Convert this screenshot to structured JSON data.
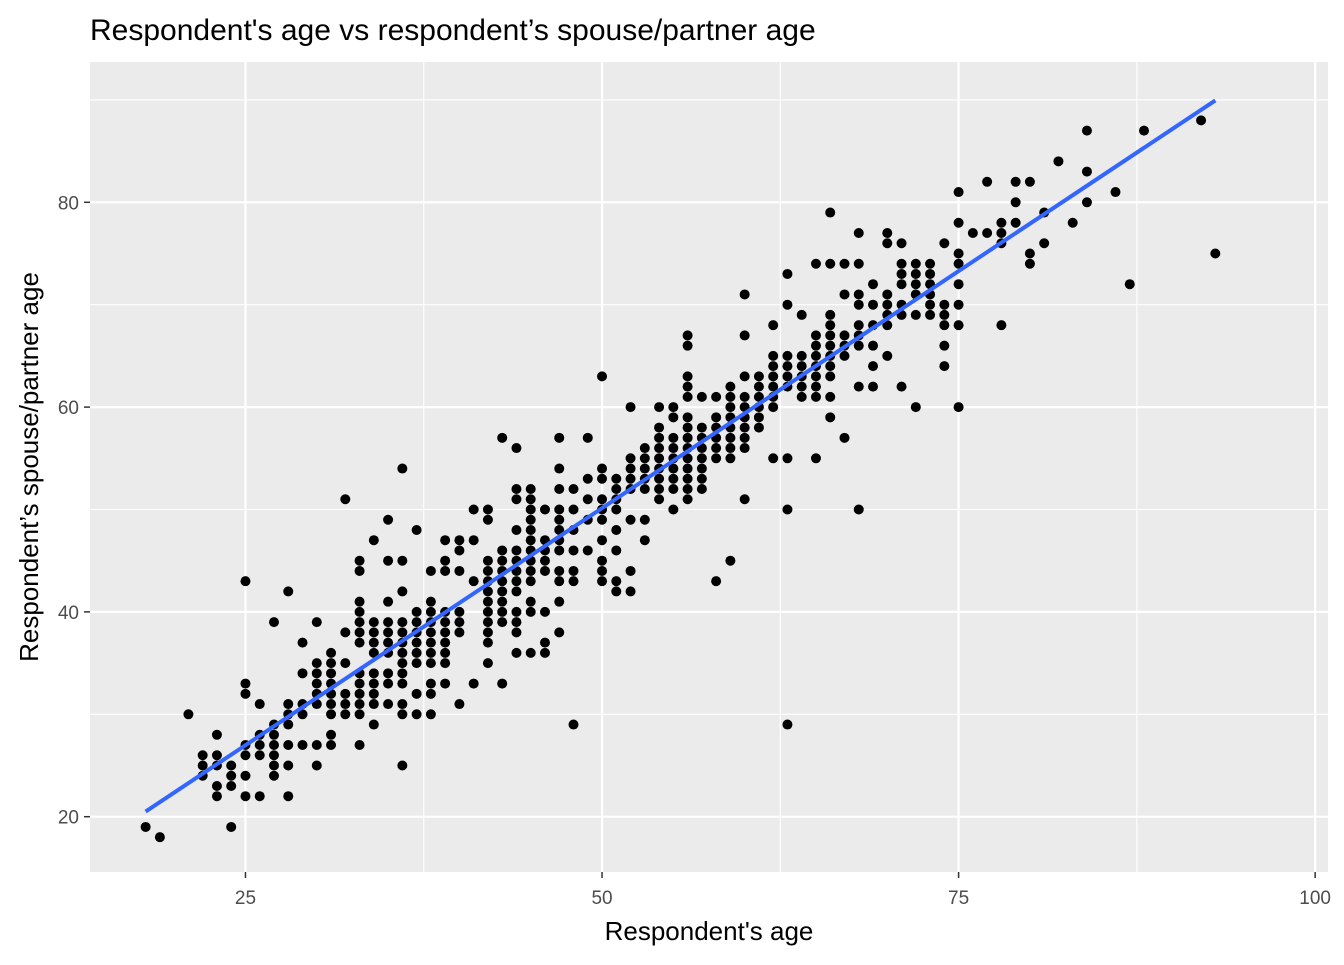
{
  "chart_data": {
    "type": "scatter",
    "title": "Respondent's age vs respondent’s spouse/partner age",
    "xlabel": "Respondent's age",
    "ylabel": "Respondent’s spouse/partner age",
    "xlim": [
      14.1,
      100.9
    ],
    "ylim": [
      14.6,
      93.7
    ],
    "xticks": [
      25,
      50,
      75,
      100
    ],
    "yticks": [
      20,
      40,
      60,
      80
    ],
    "grid": true,
    "legend": "none",
    "colors": {
      "panel": "#EBEBEB",
      "grid": "#FFFFFF",
      "point": "#000000",
      "fit_line": "#3366FF",
      "tick_text": "#4D4D4D"
    },
    "fit_line": {
      "x": [
        18,
        93
      ],
      "y": [
        20.5,
        89.95
      ]
    },
    "columns": [
      {
        "x": 18,
        "y": [
          19
        ]
      },
      {
        "x": 19,
        "y": [
          18
        ]
      },
      {
        "x": 21,
        "y": [
          30
        ]
      },
      {
        "x": 22,
        "y": [
          24,
          25,
          26
        ]
      },
      {
        "x": 23,
        "y": [
          22,
          23,
          25,
          26,
          28
        ]
      },
      {
        "x": 24,
        "y": [
          19,
          23,
          24,
          25
        ]
      },
      {
        "x": 25,
        "y": [
          22,
          24,
          26,
          27,
          32,
          33,
          43
        ]
      },
      {
        "x": 26,
        "y": [
          22,
          26,
          27,
          28,
          31
        ]
      },
      {
        "x": 27,
        "y": [
          24,
          25,
          26,
          27,
          28,
          29,
          39
        ]
      },
      {
        "x": 28,
        "y": [
          22,
          25,
          27,
          29,
          30,
          31,
          42
        ]
      },
      {
        "x": 29,
        "y": [
          27,
          30,
          31,
          34,
          37
        ]
      },
      {
        "x": 30,
        "y": [
          25,
          27,
          31,
          32,
          33,
          34,
          35,
          39
        ]
      },
      {
        "x": 31,
        "y": [
          27,
          28,
          30,
          31,
          32,
          33,
          34,
          35,
          36
        ]
      },
      {
        "x": 32,
        "y": [
          30,
          31,
          32,
          35,
          38,
          51
        ]
      },
      {
        "x": 33,
        "y": [
          27,
          30,
          31,
          32,
          33,
          34,
          37,
          38,
          39,
          40,
          41,
          44,
          45
        ]
      },
      {
        "x": 34,
        "y": [
          29,
          31,
          32,
          33,
          34,
          36,
          37,
          38,
          39,
          47
        ]
      },
      {
        "x": 35,
        "y": [
          31,
          33,
          34,
          36,
          37,
          38,
          39,
          41,
          45,
          49
        ]
      },
      {
        "x": 36,
        "y": [
          25,
          30,
          31,
          33,
          34,
          35,
          36,
          37,
          38,
          39,
          42,
          45,
          54
        ]
      },
      {
        "x": 37,
        "y": [
          30,
          32,
          35,
          36,
          37,
          38,
          39,
          40,
          48
        ]
      },
      {
        "x": 38,
        "y": [
          30,
          32,
          33,
          35,
          36,
          37,
          38,
          39,
          40,
          41,
          44
        ]
      },
      {
        "x": 39,
        "y": [
          33,
          35,
          36,
          37,
          38,
          39,
          40,
          44,
          45,
          47
        ]
      },
      {
        "x": 40,
        "y": [
          31,
          38,
          39,
          40,
          44,
          46,
          47
        ]
      },
      {
        "x": 41,
        "y": [
          33,
          43,
          47,
          50
        ]
      },
      {
        "x": 42,
        "y": [
          35,
          37,
          38,
          39,
          40,
          41,
          42,
          43,
          44,
          45,
          49,
          50
        ]
      },
      {
        "x": 43,
        "y": [
          33,
          39,
          40,
          41,
          42,
          43,
          44,
          45,
          46,
          57
        ]
      },
      {
        "x": 44,
        "y": [
          36,
          38,
          39,
          40,
          42,
          43,
          44,
          45,
          46,
          48,
          51,
          52,
          56
        ]
      },
      {
        "x": 45,
        "y": [
          36,
          40,
          41,
          43,
          44,
          45,
          46,
          47,
          48,
          49,
          50,
          51,
          52
        ]
      },
      {
        "x": 46,
        "y": [
          36,
          37,
          40,
          44,
          45,
          46,
          47,
          50
        ]
      },
      {
        "x": 47,
        "y": [
          38,
          41,
          43,
          44,
          46,
          47,
          48,
          49,
          50,
          52,
          54,
          57
        ]
      },
      {
        "x": 48,
        "y": [
          29,
          43,
          44,
          46,
          48,
          50,
          52
        ]
      },
      {
        "x": 49,
        "y": [
          46,
          49,
          51,
          53,
          57
        ]
      },
      {
        "x": 50,
        "y": [
          43,
          44,
          45,
          47,
          49,
          50,
          51,
          53,
          54,
          63
        ]
      },
      {
        "x": 51,
        "y": [
          42,
          43,
          46,
          48,
          50,
          51,
          52,
          53
        ]
      },
      {
        "x": 52,
        "y": [
          42,
          44,
          49,
          52,
          53,
          54,
          55,
          60
        ]
      },
      {
        "x": 53,
        "y": [
          47,
          49,
          52,
          53,
          54,
          55,
          56
        ]
      },
      {
        "x": 54,
        "y": [
          51,
          52,
          53,
          54,
          55,
          56,
          57,
          58,
          60
        ]
      },
      {
        "x": 55,
        "y": [
          50,
          52,
          53,
          54,
          55,
          56,
          57,
          59,
          60
        ]
      },
      {
        "x": 56,
        "y": [
          51,
          52,
          53,
          54,
          55,
          56,
          57,
          58,
          59,
          61,
          62,
          63,
          66,
          67
        ]
      },
      {
        "x": 57,
        "y": [
          52,
          53,
          54,
          55,
          56,
          57,
          58,
          61
        ]
      },
      {
        "x": 58,
        "y": [
          43,
          55,
          56,
          57,
          58,
          59,
          61
        ]
      },
      {
        "x": 59,
        "y": [
          45,
          55,
          56,
          57,
          58,
          59,
          60,
          61,
          62
        ]
      },
      {
        "x": 60,
        "y": [
          51,
          56,
          57,
          58,
          59,
          60,
          61,
          63,
          67,
          71
        ]
      },
      {
        "x": 61,
        "y": [
          58,
          59,
          60,
          61,
          62,
          63
        ]
      },
      {
        "x": 62,
        "y": [
          55,
          60,
          61,
          62,
          63,
          64,
          65,
          68
        ]
      },
      {
        "x": 63,
        "y": [
          29,
          50,
          55,
          62,
          63,
          64,
          65,
          70,
          73
        ]
      },
      {
        "x": 64,
        "y": [
          61,
          62,
          63,
          64,
          65,
          69
        ]
      },
      {
        "x": 65,
        "y": [
          55,
          61,
          62,
          63,
          64,
          65,
          66,
          67,
          74
        ]
      },
      {
        "x": 66,
        "y": [
          59,
          61,
          63,
          64,
          65,
          66,
          67,
          68,
          69,
          74,
          79
        ]
      },
      {
        "x": 67,
        "y": [
          57,
          65,
          66,
          67,
          71,
          74
        ]
      },
      {
        "x": 68,
        "y": [
          50,
          62,
          66,
          67,
          68,
          70,
          71,
          74,
          77
        ]
      },
      {
        "x": 69,
        "y": [
          62,
          64,
          66,
          68,
          70,
          72
        ]
      },
      {
        "x": 70,
        "y": [
          65,
          68,
          69,
          70,
          71,
          76,
          77
        ]
      },
      {
        "x": 71,
        "y": [
          62,
          69,
          70,
          72,
          73,
          74,
          76
        ]
      },
      {
        "x": 72,
        "y": [
          60,
          69,
          71,
          72,
          73,
          74
        ]
      },
      {
        "x": 73,
        "y": [
          69,
          70,
          71,
          72,
          73,
          74
        ]
      },
      {
        "x": 74,
        "y": [
          64,
          66,
          68,
          69,
          70,
          76
        ]
      },
      {
        "x": 75,
        "y": [
          60,
          68,
          70,
          72,
          74,
          75,
          78,
          81
        ]
      },
      {
        "x": 76,
        "y": [
          77
        ]
      },
      {
        "x": 77,
        "y": [
          77,
          82
        ]
      },
      {
        "x": 78,
        "y": [
          68,
          76,
          77,
          78
        ]
      },
      {
        "x": 79,
        "y": [
          78,
          80,
          82
        ]
      },
      {
        "x": 80,
        "y": [
          74,
          75,
          82
        ]
      },
      {
        "x": 81,
        "y": [
          76,
          79
        ]
      },
      {
        "x": 82,
        "y": [
          84
        ]
      },
      {
        "x": 83,
        "y": [
          78
        ]
      },
      {
        "x": 84,
        "y": [
          80,
          83,
          87
        ]
      },
      {
        "x": 86,
        "y": [
          81
        ]
      },
      {
        "x": 87,
        "y": [
          72
        ]
      },
      {
        "x": 88,
        "y": [
          87
        ]
      },
      {
        "x": 92,
        "y": [
          88
        ]
      },
      {
        "x": 93,
        "y": [
          75
        ]
      }
    ]
  }
}
